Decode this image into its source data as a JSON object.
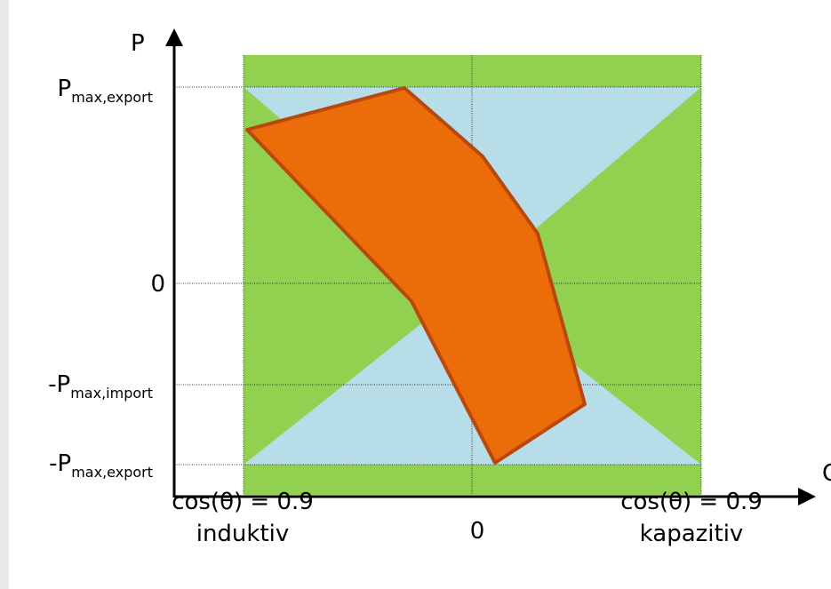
{
  "diagram": {
    "axis_y_label": "P",
    "axis_x_label": "Q",
    "y_ticks": [
      {
        "prefix": "",
        "main": "P",
        "sub": "max,export"
      },
      {
        "prefix": "",
        "main": "0",
        "sub": ""
      },
      {
        "prefix": "-",
        "main": "P",
        "sub": "max,import"
      },
      {
        "prefix": "-",
        "main": "P",
        "sub": "max,export"
      }
    ],
    "x_center_label": "0",
    "x_left_label": {
      "line1": "cos(θ) = 0.9",
      "line2": "induktiv"
    },
    "x_right_label": {
      "line1": "cos(θ) = 0.9",
      "line2": "kapazitiv"
    }
  },
  "colors": {
    "green_region": "#92d050",
    "blue_region": "#b7dde8",
    "orange_polygon": "#ec6c0a",
    "orange_border": "#b8480b",
    "axis": "#000000",
    "left_strip": "#e9e9e9"
  }
}
